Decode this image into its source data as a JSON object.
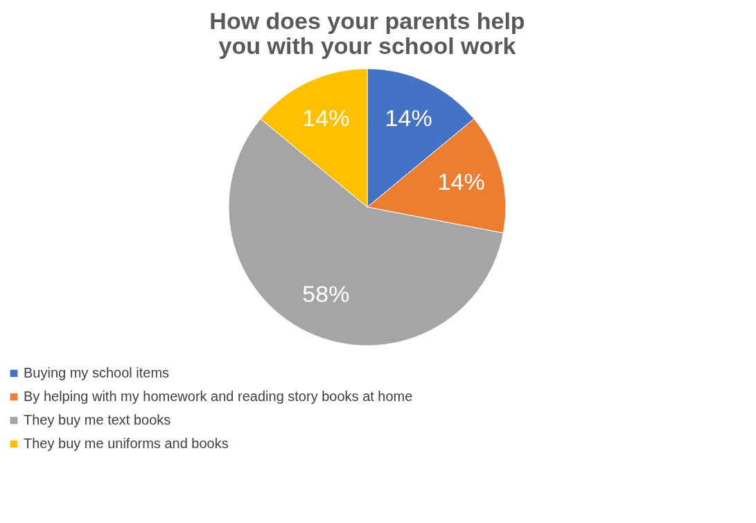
{
  "chart_data": {
    "type": "pie",
    "title": "How does your parents help you with your school work",
    "categories": [
      "Buying my school items",
      "By helping with my homework and reading story books at home",
      "They buy me text books",
      "They buy me uniforms and books"
    ],
    "values": [
      14,
      14,
      58,
      14
    ],
    "colors": [
      "#4472c4",
      "#ed7d31",
      "#a5a5a5",
      "#ffc000"
    ],
    "value_labels": [
      "14%",
      "14%",
      "58%",
      "14%"
    ],
    "legend": "bottom"
  }
}
